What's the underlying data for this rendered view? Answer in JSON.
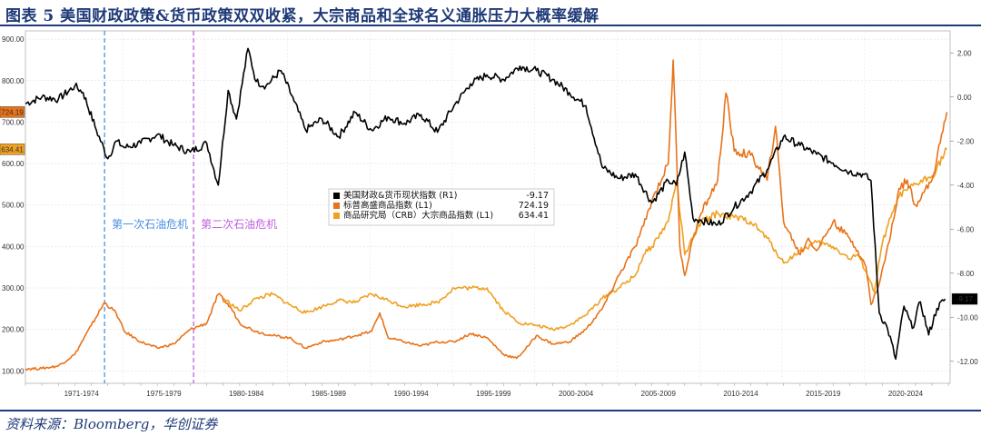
{
  "header": {
    "title": "图表 5  美国财政政策&货币政策双双收紧，大宗商品和全球名义通胀压力大概率缓解"
  },
  "footer": {
    "source": "资料来源：Bloomberg，华创证券"
  },
  "chart_data": {
    "type": "line",
    "left_axis": {
      "ticks": [
        "900.00",
        "800.00",
        "700.00",
        "600.00",
        "500.00",
        "400.00",
        "300.00",
        "200.00",
        "100.00"
      ],
      "range": [
        70,
        920
      ]
    },
    "right_axis": {
      "ticks": [
        "2.00",
        "0.00",
        "-2.00",
        "-4.00",
        "-6.00",
        "-8.00",
        "-10.00",
        "-12.00"
      ],
      "range": [
        -13,
        3
      ]
    },
    "x_labels": [
      "1971-1974",
      "1975-1979",
      "1980-1984",
      "1985-1989",
      "1990-1994",
      "1995-1999",
      "2000-2004",
      "2005-2009",
      "2010-2014",
      "2015-2019",
      "2020-2024"
    ],
    "x_range": [
      1969.0,
      2025.1
    ],
    "annotations": [
      {
        "text": "第一次石油危机",
        "x": 1973.8,
        "color": "#4a90e2"
      },
      {
        "text": "第二次石油危机",
        "x": 1979.2,
        "color": "#c060e0"
      }
    ],
    "end_labels": [
      {
        "text": "724.19",
        "axis": "left",
        "value": 724.19,
        "color": "#e8731a"
      },
      {
        "text": "634.41",
        "axis": "left",
        "value": 634.41,
        "color": "#f0a020"
      },
      {
        "text": "-9.17",
        "axis": "right",
        "value": -9.17,
        "color": "#000000"
      }
    ],
    "series": [
      {
        "name": "美国财政&货币现状指数 (R1)",
        "last": "-9.17",
        "axis": "right",
        "color": "#000000",
        "x": [
          1969.0,
          1970.0,
          1971.0,
          1972.0,
          1972.5,
          1973.3,
          1974.0,
          1974.5,
          1975.0,
          1976.0,
          1977.0,
          1978.0,
          1979.0,
          1980.0,
          1980.7,
          1981.3,
          1981.8,
          1982.5,
          1983.0,
          1983.6,
          1984.5,
          1985.3,
          1986.0,
          1987.0,
          1988.0,
          1989.0,
          1990.0,
          1991.0,
          1992.0,
          1993.0,
          1994.0,
          1995.0,
          1996.0,
          1997.0,
          1998.0,
          1999.0,
          2000.0,
          2001.0,
          2002.0,
          2003.0,
          2004.0,
          2005.0,
          2006.0,
          2007.0,
          2008.0,
          2008.5,
          2009.0,
          2009.5,
          2010.0,
          2011.0,
          2012.0,
          2013.0,
          2014.0,
          2015.0,
          2016.0,
          2017.0,
          2018.0,
          2019.0,
          2019.8,
          2020.3,
          2020.8,
          2021.3,
          2021.8,
          2022.3,
          2022.8,
          2023.3,
          2023.8,
          2024.3,
          2024.8
        ],
        "y": [
          -0.3,
          0.0,
          -0.1,
          0.5,
          0.2,
          -1.5,
          -2.8,
          -2.0,
          -2.3,
          -2.1,
          -1.7,
          -2.2,
          -2.5,
          -2.1,
          -4.0,
          0.3,
          -1.0,
          2.2,
          0.7,
          0.5,
          1.2,
          -0.2,
          -1.5,
          -1.0,
          -1.8,
          -0.7,
          -1.5,
          -0.9,
          -1.2,
          -0.8,
          -1.6,
          -0.4,
          0.6,
          1.0,
          0.8,
          1.4,
          1.2,
          0.8,
          0.2,
          -0.4,
          -3.2,
          -3.7,
          -3.5,
          -4.8,
          -3.8,
          -4.0,
          -2.5,
          -5.5,
          -5.6,
          -5.8,
          -5.0,
          -4.3,
          -3.3,
          -1.8,
          -2.2,
          -2.6,
          -3.0,
          -3.4,
          -3.5,
          -3.8,
          -9.8,
          -10.5,
          -11.9,
          -9.5,
          -10.5,
          -9.3,
          -10.8,
          -9.6,
          -9.17
        ]
      },
      {
        "name": "标普高盛商品指数 (L1)",
        "last": "724.19",
        "axis": "left",
        "color": "#e8731a",
        "x": [
          1969.0,
          1970.0,
          1971.0,
          1972.0,
          1973.0,
          1973.8,
          1974.5,
          1975.0,
          1976.0,
          1977.0,
          1978.0,
          1979.0,
          1980.0,
          1980.7,
          1981.5,
          1982.0,
          1983.0,
          1984.0,
          1985.0,
          1986.0,
          1987.0,
          1988.0,
          1989.0,
          1990.0,
          1990.5,
          1991.0,
          1992.0,
          1993.0,
          1994.0,
          1995.0,
          1996.0,
          1997.0,
          1998.0,
          1998.8,
          1999.5,
          2000.0,
          2001.0,
          2002.0,
          2003.0,
          2004.0,
          2005.0,
          2006.0,
          2006.5,
          2007.0,
          2008.0,
          2008.3,
          2008.7,
          2009.0,
          2009.5,
          2010.0,
          2011.0,
          2011.5,
          2012.0,
          2013.0,
          2014.0,
          2014.5,
          2015.0,
          2016.0,
          2016.5,
          2017.0,
          2018.0,
          2019.0,
          2019.5,
          2020.0,
          2020.3,
          2020.8,
          2021.5,
          2022.0,
          2022.5,
          2023.0,
          2023.5,
          2024.0,
          2024.5,
          2024.9
        ],
        "y": [
          105,
          106,
          112,
          140,
          210,
          265,
          240,
          195,
          170,
          155,
          165,
          200,
          215,
          285,
          250,
          215,
          195,
          185,
          180,
          155,
          170,
          175,
          185,
          195,
          240,
          180,
          170,
          160,
          170,
          170,
          190,
          180,
          140,
          130,
          160,
          185,
          165,
          170,
          200,
          250,
          330,
          400,
          450,
          510,
          600,
          850,
          400,
          330,
          420,
          480,
          560,
          770,
          630,
          620,
          560,
          690,
          460,
          380,
          420,
          390,
          460,
          420,
          390,
          350,
          260,
          310,
          430,
          540,
          560,
          500,
          530,
          560,
          650,
          724.19
        ]
      },
      {
        "name": "商品研究局（CRB）大宗商品指数 (L1)",
        "last": "634.41",
        "axis": "left",
        "color": "#f0a020",
        "x": [
          1981.0,
          1982.0,
          1983.0,
          1984.0,
          1985.0,
          1986.0,
          1987.0,
          1988.0,
          1989.0,
          1990.0,
          1991.0,
          1992.0,
          1993.0,
          1994.0,
          1995.0,
          1996.0,
          1997.0,
          1998.0,
          1999.0,
          2000.0,
          2001.0,
          2002.0,
          2003.0,
          2004.0,
          2005.0,
          2006.0,
          2006.5,
          2007.0,
          2008.0,
          2008.5,
          2009.0,
          2009.5,
          2010.0,
          2011.0,
          2012.0,
          2013.0,
          2014.0,
          2015.0,
          2016.0,
          2017.0,
          2018.0,
          2019.0,
          2019.5,
          2020.0,
          2020.5,
          2021.0,
          2021.5,
          2022.0,
          2023.0,
          2024.0,
          2024.9
        ],
        "y": [
          275,
          245,
          275,
          285,
          260,
          240,
          255,
          270,
          265,
          285,
          270,
          255,
          260,
          265,
          300,
          300,
          300,
          245,
          215,
          210,
          200,
          210,
          235,
          275,
          300,
          330,
          380,
          400,
          460,
          560,
          380,
          420,
          460,
          480,
          470,
          460,
          420,
          360,
          390,
          410,
          400,
          370,
          380,
          340,
          290,
          410,
          470,
          520,
          550,
          570,
          634.41
        ]
      }
    ]
  }
}
